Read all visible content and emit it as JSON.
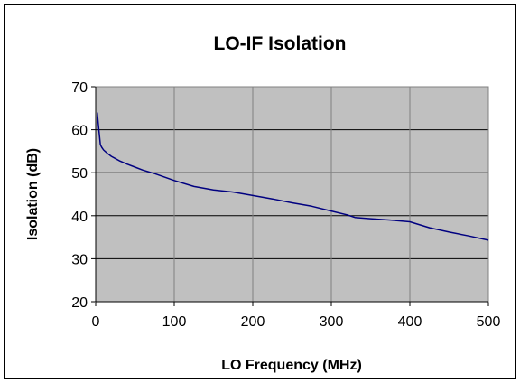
{
  "chart_data": {
    "type": "line",
    "title": "LO-IF Isolation",
    "xlabel": "LO Frequency  (MHz)",
    "ylabel": "Isolation (dB)",
    "xlim": [
      0,
      500
    ],
    "ylim": [
      20,
      70
    ],
    "xticks": [
      "0",
      "100",
      "200",
      "300",
      "400",
      "500"
    ],
    "yticks": [
      "20",
      "30",
      "40",
      "50",
      "60",
      "70"
    ],
    "grid": true,
    "legend": "none",
    "colors": {
      "plot_background": "#c0c0c0",
      "line": "#000080",
      "grid": "#000000"
    },
    "series": [
      {
        "x": [
          2,
          4,
          6,
          8,
          10,
          15,
          20,
          30,
          40,
          50,
          60,
          75,
          100,
          125,
          150,
          175,
          200,
          225,
          250,
          275,
          300,
          320,
          330,
          350,
          375,
          400,
          425,
          450,
          475,
          500
        ],
        "y": [
          64,
          60,
          56.5,
          55.8,
          55.3,
          54.5,
          53.8,
          52.8,
          52,
          51.3,
          50.6,
          49.8,
          48.2,
          46.8,
          46,
          45.5,
          44.7,
          43.9,
          43,
          42.2,
          41.1,
          40.2,
          39.6,
          39.3,
          39,
          38.6,
          37.2,
          36.2,
          35.3,
          34.3
        ]
      }
    ]
  }
}
